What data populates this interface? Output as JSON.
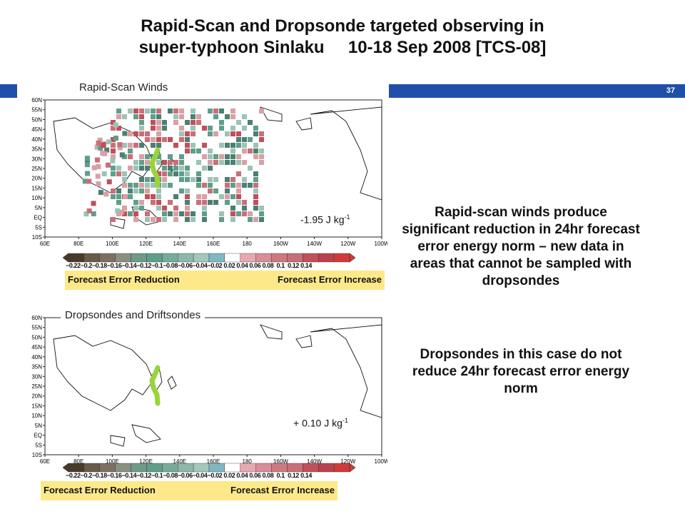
{
  "title": {
    "line1": "Rapid-Scan and Dropsonde targeted observing in",
    "line2": "super-typhoon Sinlaku     10-18 Sep 2008 [TCS-08]"
  },
  "page_number": "37",
  "colors": {
    "header_bar": "#1f4fa8",
    "reduction": "#5f9e8a",
    "increase": "#c0505a",
    "track": "#9ad43a",
    "legend_band": "#fde98a"
  },
  "map": {
    "lat_labels": [
      "60N",
      "55N",
      "50N",
      "45N",
      "40N",
      "35N",
      "30N",
      "25N",
      "20N",
      "15N",
      "10N",
      "5N",
      "EQ",
      "5S",
      "10S"
    ],
    "lon_labels": [
      "60E",
      "80E",
      "100E",
      "120E",
      "140E",
      "160E",
      "180",
      "160W",
      "140W",
      "120W",
      "100W"
    ]
  },
  "panels": [
    {
      "name": "rapid-scan",
      "label": "Rapid-Scan Winds",
      "energy_value": "-1.95 J kg",
      "energy_exponent": "-1",
      "scale_ticks": "−0.22−0.2−0.18−0.16−0.14−0.12−0.1−0.08−0.06−0.04−0.02 0.02 0.04 0.06 0.08  0.1  0.12 0.14",
      "legend_left": "Forecast Error Reduction",
      "legend_right": "Forecast Error Increase"
    },
    {
      "name": "dropsondes",
      "label": "Dropsondes  and Driftsondes",
      "energy_value": "+ 0.10 J kg",
      "energy_exponent": "-1",
      "scale_ticks": "−0.22−0.2−0.18−0.16−0.14−0.12−0.1−0.08−0.06−0.04−0.02 0.02 0.04 0.06 0.08  0.1  0.12 0.14",
      "legend_left": "Forecast Error Reduction",
      "legend_right": "Forecast Error Increase"
    }
  ],
  "side_text": {
    "para1": "Rapid-scan winds produce significant reduction in 24hr forecast error energy norm – new data in areas that cannot be sampled with dropsondes",
    "para2": "Dropsondes in this case do not reduce 24hr forecast error energy norm"
  }
}
